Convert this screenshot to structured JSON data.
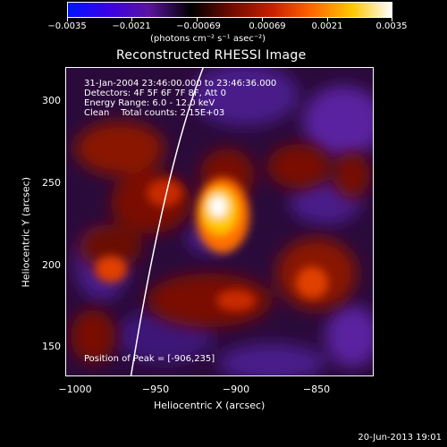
{
  "colorbar": {
    "tick_labels": [
      "−0.0035",
      "−0.0021",
      "−0.00069",
      "0.00069",
      "0.0021",
      "0.0035"
    ],
    "units": "(photons cm⁻² s⁻¹ asec⁻²)"
  },
  "title": "Reconstructed RHESSI Image",
  "annotations": {
    "time_range": "31-Jan-2004 23:46:00.000 to 23:46:36.000",
    "detectors": "Detectors: 4F 5F 6F 7F 8F, Att 0",
    "energy": "Energy Range: 6.0 - 12.0 keV",
    "clean_counts": "Clean    Total counts: 2.15E+03",
    "peak": "Position of Peak = [-906,235]"
  },
  "axes": {
    "xlabel": "Heliocentric X (arcsec)",
    "ylabel": "Heliocentric Y (arcsec)",
    "x_ticks": [
      "−1000",
      "−950",
      "−900",
      "−850"
    ],
    "y_ticks": [
      "300",
      "250",
      "200",
      "150"
    ]
  },
  "footer": {
    "timestamp": "20-Jun-2013 19:01"
  },
  "colors": {
    "colormap": [
      "#0015ff",
      "#3c00e6",
      "#5a14a0",
      "#000000",
      "#6a0a00",
      "#c81e00",
      "#ff6400",
      "#ffc800",
      "#ffffff"
    ],
    "limb_line": "#ffffff"
  }
}
